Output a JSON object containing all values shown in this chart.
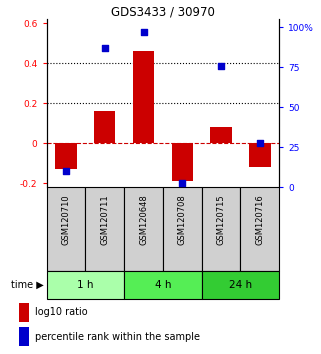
{
  "title": "GDS3433 / 30970",
  "samples": [
    "GSM120710",
    "GSM120711",
    "GSM120648",
    "GSM120708",
    "GSM120715",
    "GSM120716"
  ],
  "log10_ratio": [
    -0.13,
    0.16,
    0.46,
    -0.19,
    0.08,
    -0.12
  ],
  "percentile_rank": [
    10,
    87,
    97,
    3,
    76,
    28
  ],
  "groups": [
    {
      "label": "1 h",
      "indices": [
        0,
        1
      ],
      "color": "#aaffaa"
    },
    {
      "label": "4 h",
      "indices": [
        2,
        3
      ],
      "color": "#55ee55"
    },
    {
      "label": "24 h",
      "indices": [
        4,
        5
      ],
      "color": "#33cc33"
    }
  ],
  "bar_color": "#cc0000",
  "point_color": "#0000cc",
  "ylim_left": [
    -0.22,
    0.62
  ],
  "ylim_right": [
    0,
    105
  ],
  "yticks_left": [
    -0.2,
    0.0,
    0.2,
    0.4,
    0.6
  ],
  "ytick_labels_left": [
    "-0.2",
    "0",
    "0.2",
    "0.4",
    "0.6"
  ],
  "yticks_right": [
    0,
    25,
    50,
    75,
    100
  ],
  "ytick_labels_right": [
    "0",
    "25",
    "50",
    "75",
    "100%"
  ],
  "hlines": [
    0.2,
    0.4
  ],
  "dashed_hline": 0.0,
  "bar_width": 0.55,
  "label_bg_color": "#d0d0d0",
  "legend_items": [
    {
      "label": "log10 ratio",
      "color": "#cc0000"
    },
    {
      "label": "percentile rank within the sample",
      "color": "#0000cc"
    }
  ]
}
